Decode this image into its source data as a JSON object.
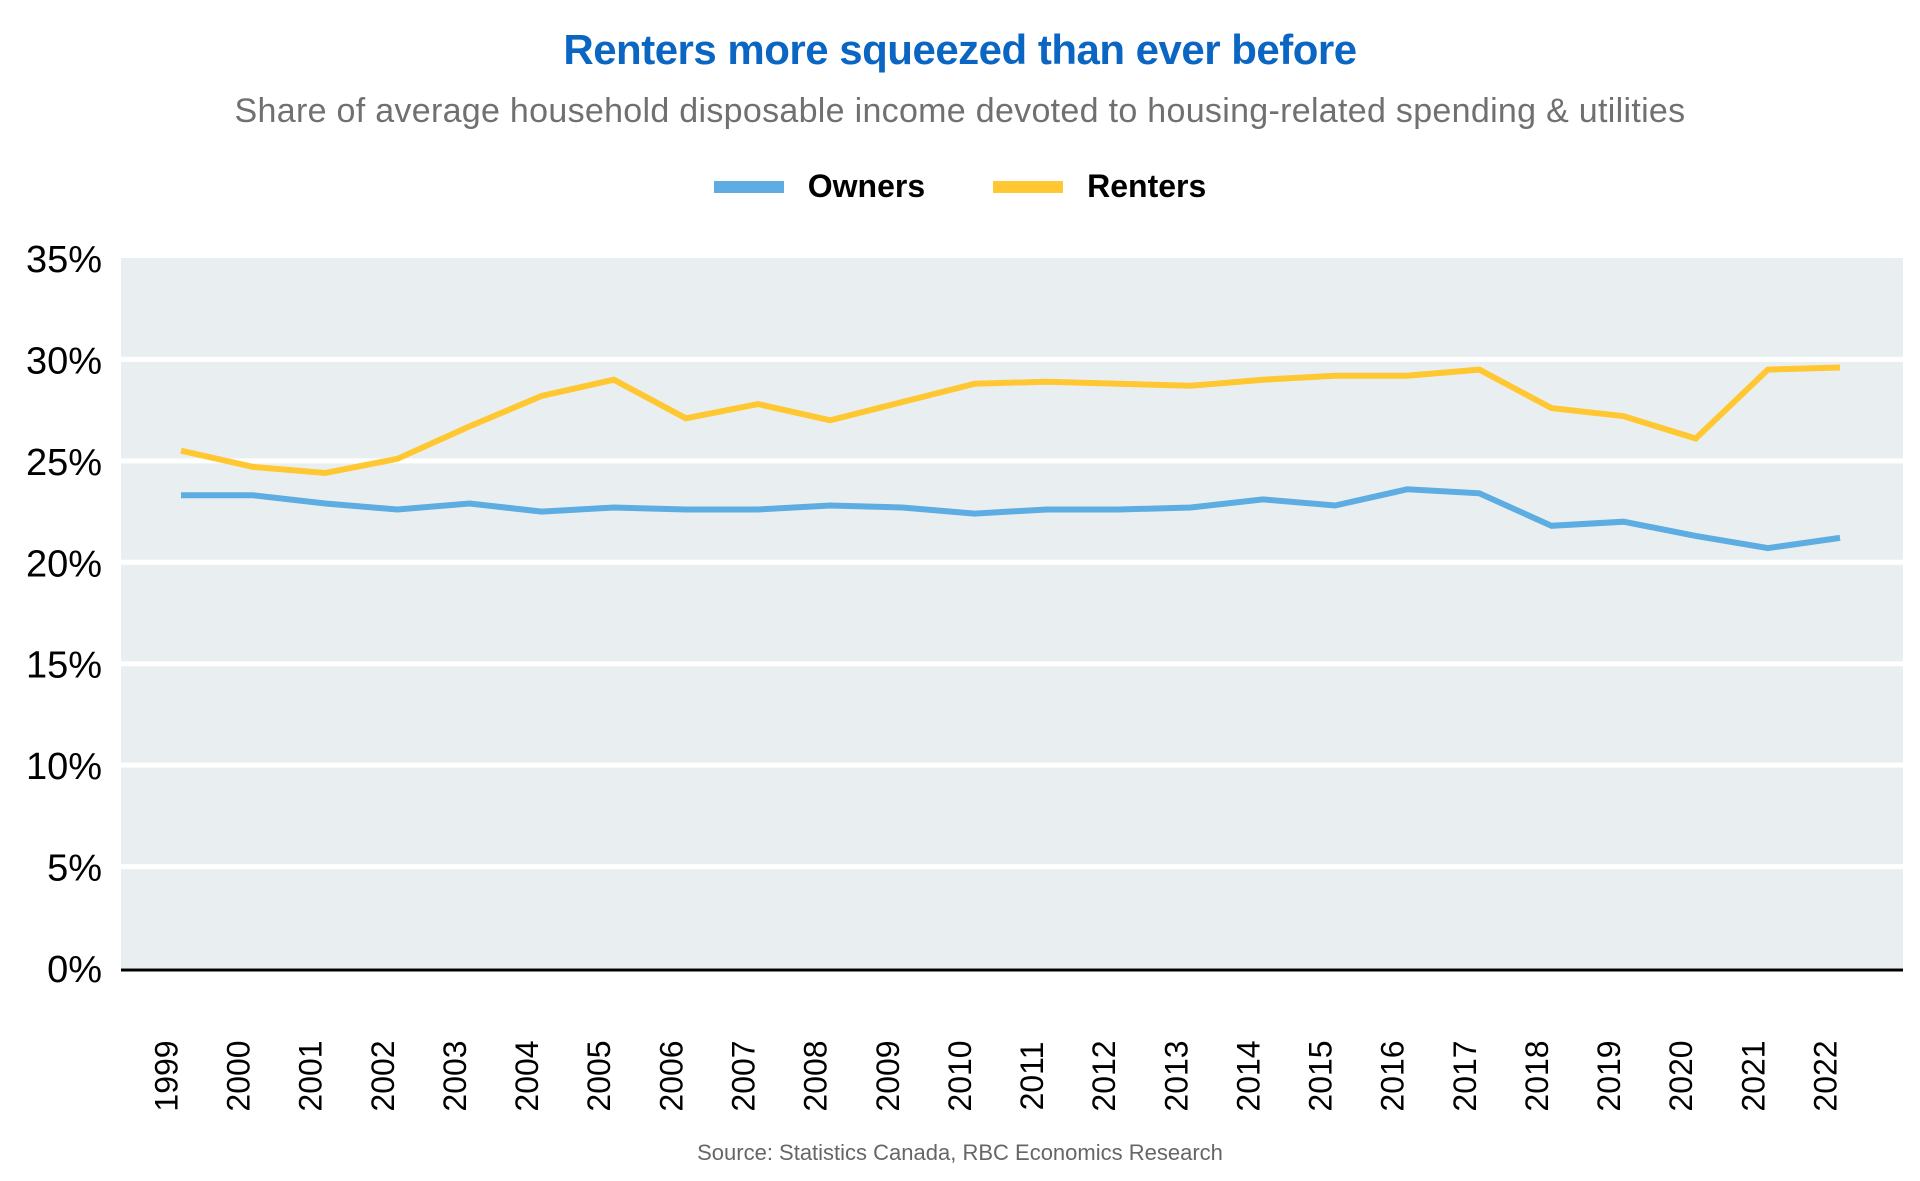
{
  "chart_data": {
    "type": "line",
    "title": "Renters more squeezed than ever before",
    "subtitle": "Share of average household disposable income devoted to housing-related spending & utilities",
    "xlabel": "",
    "ylabel": "",
    "x": [
      "1999",
      "2000",
      "2001",
      "2002",
      "2003",
      "2004",
      "2005",
      "2006",
      "2007",
      "2008",
      "2009",
      "2010",
      "2011",
      "2012",
      "2013",
      "2014",
      "2015",
      "2016",
      "2017",
      "2018",
      "2019",
      "2020",
      "2021",
      "2022"
    ],
    "ylim": [
      0,
      35
    ],
    "yticks": [
      0,
      5,
      10,
      15,
      20,
      25,
      30,
      35
    ],
    "ytick_labels": [
      "0%",
      "5%",
      "10%",
      "15%",
      "20%",
      "25%",
      "30%",
      "35%"
    ],
    "grid": true,
    "legend_position": "top-center",
    "series": [
      {
        "name": "Owners",
        "color": "#5dade2",
        "values": [
          23.3,
          23.3,
          22.9,
          22.6,
          22.9,
          22.5,
          22.7,
          22.6,
          22.6,
          22.8,
          22.7,
          22.4,
          22.6,
          22.6,
          22.7,
          23.1,
          22.8,
          23.6,
          23.4,
          21.8,
          22.0,
          21.3,
          20.7,
          21.2
        ]
      },
      {
        "name": "Renters",
        "color": "#ffc832",
        "values": [
          25.5,
          24.7,
          24.4,
          25.1,
          26.7,
          28.2,
          29.0,
          27.1,
          27.8,
          27.0,
          27.9,
          28.8,
          28.9,
          28.8,
          28.7,
          29.0,
          29.2,
          29.2,
          29.5,
          27.6,
          27.2,
          26.1,
          29.5,
          29.6
        ]
      }
    ],
    "source": "Source: Statistics Canada, RBC Economics Research"
  }
}
